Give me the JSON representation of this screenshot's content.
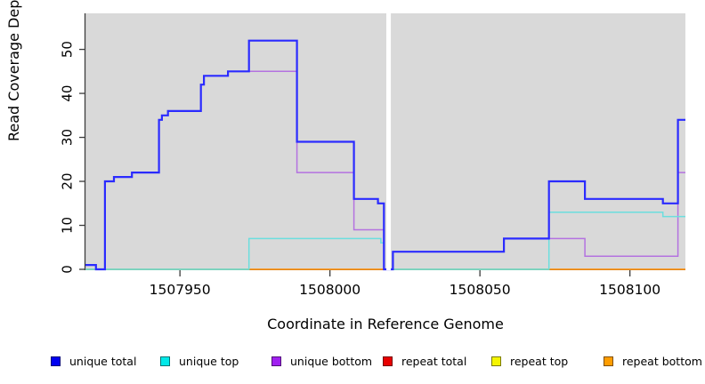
{
  "figure": {
    "xlabel": "Coordinate in Reference Genome",
    "ylabel": "Read Coverage Depth"
  },
  "legend": {
    "items": [
      {
        "label": "unique total",
        "color": "#0000f0"
      },
      {
        "label": "unique top",
        "color": "#00e8e8"
      },
      {
        "label": "unique bottom",
        "color": "#a020f0"
      },
      {
        "label": "repeat total",
        "color": "#e80000"
      },
      {
        "label": "repeat top",
        "color": "#f5f500"
      },
      {
        "label": "repeat bottom",
        "color": "#ff9d00"
      }
    ]
  },
  "chart_data": {
    "type": "line",
    "subtype": "step-coverage",
    "title": "",
    "xlabel": "Coordinate in Reference Genome",
    "ylabel": "Read Coverage Depth",
    "xlim": [
      1507918.5,
      1508118.5
    ],
    "ylim": [
      0,
      58.2
    ],
    "x_ticks": [
      1507950,
      1508000,
      1508050,
      1508100
    ],
    "y_ticks": [
      0,
      10,
      20,
      30,
      40,
      50
    ],
    "grid": false,
    "panel_bg": "#d9d9d9",
    "axis_color": "#3c3c3c",
    "gap": {
      "x_start": 1508018.8,
      "x_end": 1508020.3,
      "color": "#ffffff"
    },
    "legend_position": "bottom",
    "series": [
      {
        "name": "unique total",
        "color": "#2b2bff",
        "width": 2.2,
        "steps": [
          [
            1507918.5,
            1
          ],
          [
            1507922,
            0
          ],
          [
            1507925,
            20
          ],
          [
            1507928,
            21
          ],
          [
            1507934,
            22
          ],
          [
            1507943,
            34
          ],
          [
            1507944,
            35
          ],
          [
            1507946,
            36
          ],
          [
            1507957,
            42
          ],
          [
            1507958,
            44
          ],
          [
            1507966,
            45
          ],
          [
            1507973,
            52
          ],
          [
            1507989,
            29
          ],
          [
            1508008,
            16
          ],
          [
            1508016,
            15
          ],
          [
            1508018,
            0
          ],
          [
            1508021,
            4
          ],
          [
            1508058,
            7
          ],
          [
            1508073,
            20
          ],
          [
            1508085,
            16
          ],
          [
            1508111,
            15
          ],
          [
            1508116,
            34
          ]
        ]
      },
      {
        "name": "unique top",
        "color": "#6cdede",
        "width": 1.5,
        "steps": [
          [
            1507918.5,
            0
          ],
          [
            1507973,
            7
          ],
          [
            1508017,
            6
          ],
          [
            1508018,
            0
          ],
          [
            1508073,
            13
          ],
          [
            1508111,
            12
          ]
        ]
      },
      {
        "name": "unique bottom",
        "color": "#b472e0",
        "width": 1.5,
        "steps": [
          [
            1507918.5,
            1
          ],
          [
            1507922,
            0
          ],
          [
            1507925,
            20
          ],
          [
            1507928,
            21
          ],
          [
            1507934,
            22
          ],
          [
            1507943,
            34
          ],
          [
            1507944,
            35
          ],
          [
            1507946,
            36
          ],
          [
            1507957,
            42
          ],
          [
            1507958,
            44
          ],
          [
            1507966,
            45
          ],
          [
            1507989,
            22
          ],
          [
            1508008,
            9
          ],
          [
            1508018,
            0
          ],
          [
            1508021,
            4
          ],
          [
            1508058,
            7
          ],
          [
            1508085,
            3
          ],
          [
            1508116,
            22
          ]
        ]
      },
      {
        "name": "repeat total",
        "color": "#e80000",
        "width": 1.2,
        "steps": [
          [
            1507918.5,
            0
          ]
        ]
      },
      {
        "name": "repeat top",
        "color": "#f5f500",
        "width": 1.2,
        "steps": [
          [
            1507918.5,
            0
          ]
        ]
      },
      {
        "name": "repeat bottom",
        "color": "#ff9415",
        "width": 1.5,
        "steps": [
          [
            1507918.5,
            0
          ]
        ]
      }
    ],
    "zero_blend_segments": [
      [
        1507918.5,
        1507973
      ],
      [
        1508021,
        1508073
      ]
    ],
    "zero_blend_color": "#8ed98e",
    "end_x": 1508118.5
  }
}
